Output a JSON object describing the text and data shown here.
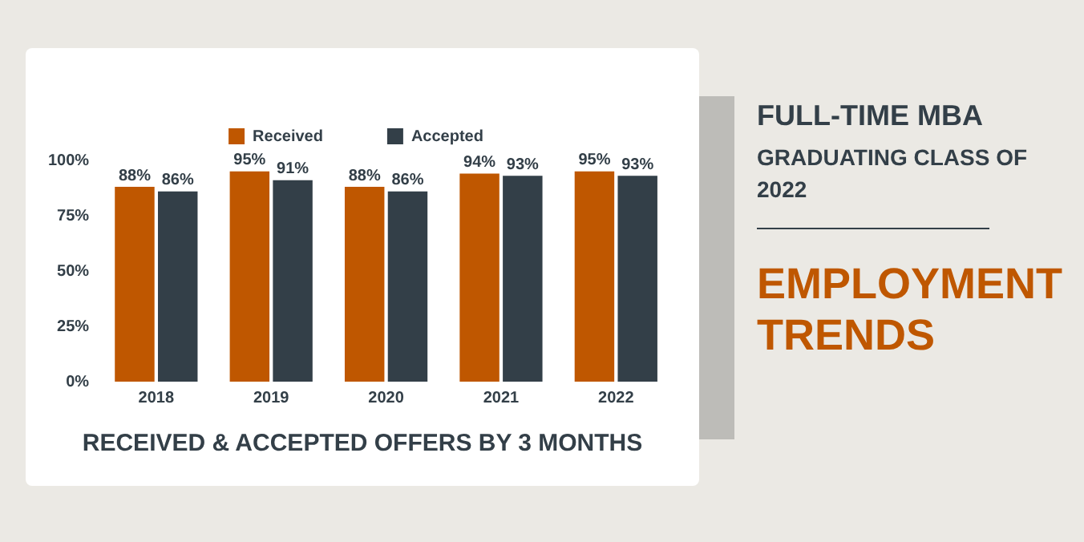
{
  "chart_data": {
    "type": "bar",
    "title": "EMPLOYMENT TRENDS",
    "xlabel": "RECEIVED & ACCEPTED OFFERS BY 3 MONTHS",
    "annotations": [
      "FULL-TIME MBA",
      "GRADUATING CLASS OF 2022"
    ],
    "categories": [
      "2018",
      "2019",
      "2020",
      "2021",
      "2022"
    ],
    "series": [
      {
        "name": "Received",
        "color": "#bf5700",
        "values": [
          88,
          95,
          88,
          94,
          95
        ],
        "value_labels": [
          "88%",
          "95%",
          "88%",
          "94%",
          "95%"
        ]
      },
      {
        "name": "Accepted",
        "color": "#333f48",
        "values": [
          86,
          91,
          86,
          93,
          93
        ],
        "value_labels": [
          "86%",
          "91%",
          "86%",
          "93%",
          "93%"
        ]
      }
    ],
    "ylim": [
      0,
      100
    ],
    "yticks": [
      {
        "value": 0,
        "label": "0%"
      },
      {
        "value": 25,
        "label": "25%"
      },
      {
        "value": 50,
        "label": "50%"
      },
      {
        "value": 75,
        "label": "75%"
      },
      {
        "value": 100,
        "label": "100%"
      }
    ],
    "grid": false,
    "legend": "top"
  }
}
